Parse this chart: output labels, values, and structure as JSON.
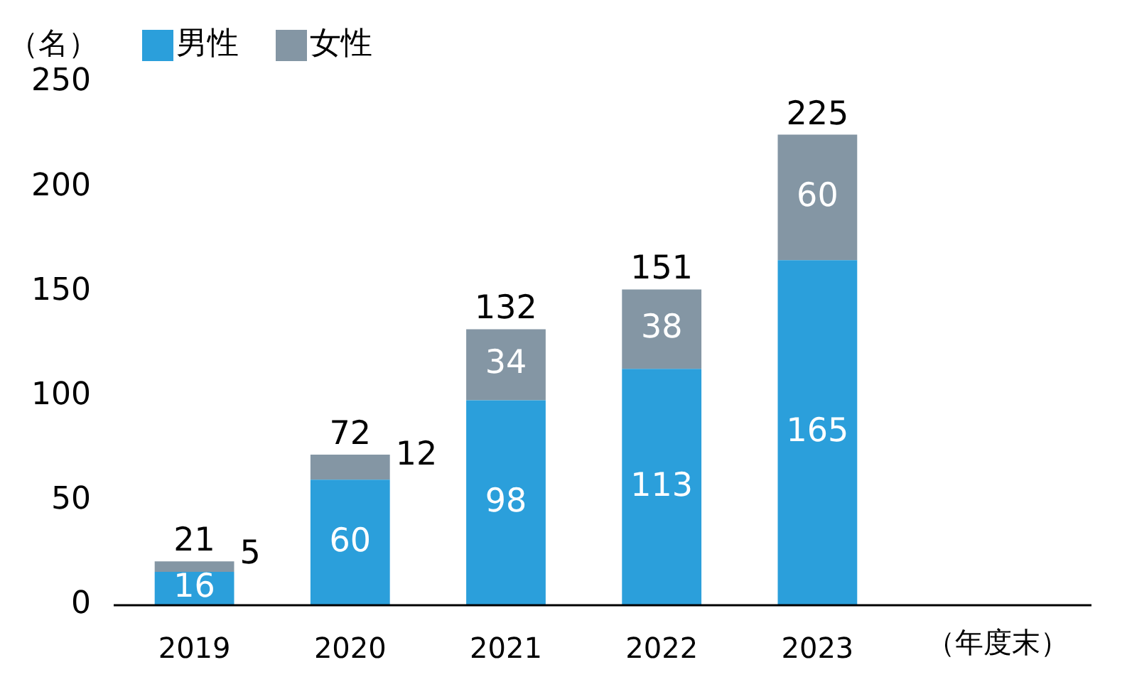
{
  "chart_data": {
    "type": "bar",
    "stacked": true,
    "ylabel": "（名）",
    "xlabel": "（年度末）",
    "categories": [
      "2019",
      "2020",
      "2021",
      "2022",
      "2023"
    ],
    "series": [
      {
        "name": "男性",
        "color": "#2b9fdb",
        "values": [
          16,
          60,
          98,
          113,
          165
        ]
      },
      {
        "name": "女性",
        "color": "#8496a4",
        "values": [
          5,
          12,
          34,
          38,
          60
        ]
      }
    ],
    "totals": [
      "21",
      "72",
      "132",
      "151",
      "225"
    ],
    "data_labels": true,
    "legend": "top left",
    "grid": false,
    "ylim": [
      0,
      250
    ],
    "yticks": [
      0,
      50,
      100,
      150,
      200,
      250
    ]
  }
}
